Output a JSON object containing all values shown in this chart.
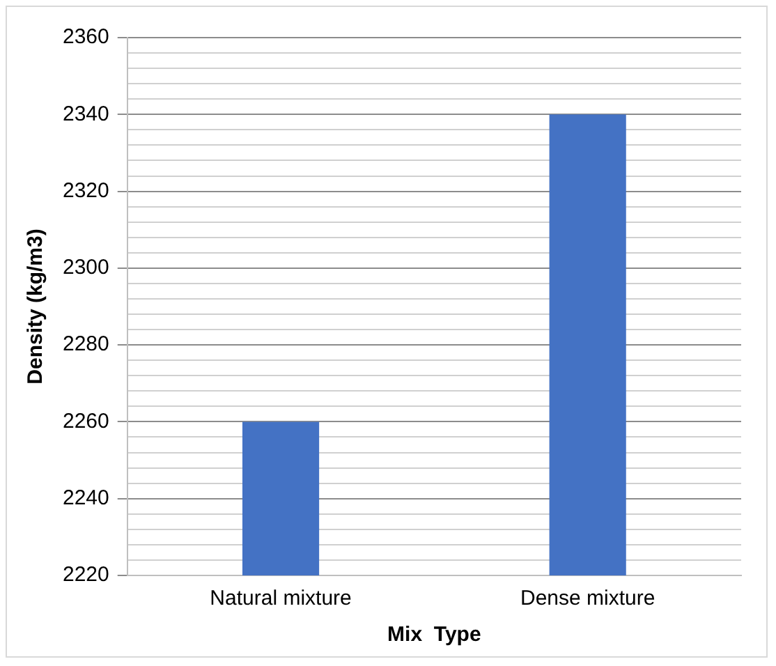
{
  "chart_data": {
    "type": "bar",
    "xlabel": "Mix  Type",
    "ylabel": "Density (kg/m3)",
    "categories": [
      "Natural mixture",
      "Dense mixture"
    ],
    "values": [
      2260,
      2340
    ],
    "color": "#4472c4",
    "ylim": [
      2220,
      2360
    ],
    "yticks": [
      2220,
      {
        "value": 2224,
        "label": null
      },
      {
        "value": 2228,
        "label": null
      },
      {
        "value": 2232,
        "label": null
      },
      {
        "value": 2236,
        "label": null
      },
      2240,
      {
        "value": 2244,
        "label": null
      },
      {
        "value": 2248,
        "label": null
      },
      {
        "value": 2252,
        "label": null
      },
      {
        "value": 2256,
        "label": null
      },
      2260,
      {
        "value": 2264,
        "label": null
      },
      {
        "value": 2268,
        "label": null
      },
      {
        "value": 2272,
        "label": null
      },
      {
        "value": 2276,
        "label": null
      },
      2280,
      {
        "value": 2284,
        "label": null
      },
      {
        "value": 2288,
        "label": null
      },
      {
        "value": 2292,
        "label": null
      },
      {
        "value": 2296,
        "label": null
      },
      2300,
      {
        "value": 2304,
        "label": null
      },
      {
        "value": 2308,
        "label": null
      },
      {
        "value": 2312,
        "label": null
      },
      {
        "value": 2316,
        "label": null
      },
      2320,
      {
        "value": 2324,
        "label": null
      },
      {
        "value": 2328,
        "label": null
      },
      {
        "value": 2332,
        "label": null
      },
      {
        "value": 2336,
        "label": null
      },
      2340,
      {
        "value": 2344,
        "label": null
      },
      {
        "value": 2348,
        "label": null
      },
      {
        "value": 2352,
        "label": null
      },
      {
        "value": 2356,
        "label": null
      },
      2360
    ],
    "grid": "y",
    "legend": false
  }
}
